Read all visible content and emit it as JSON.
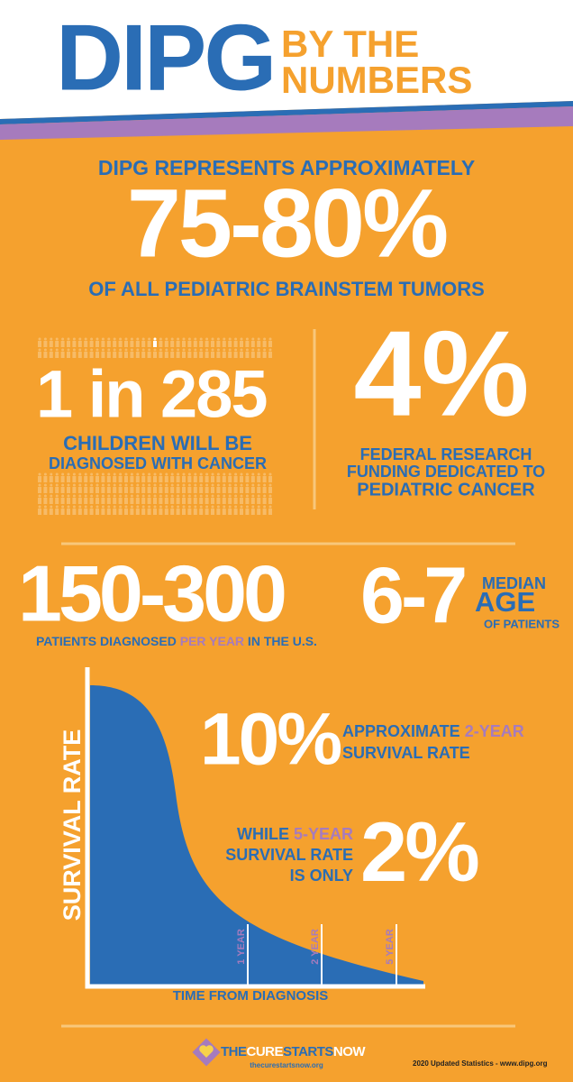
{
  "header": {
    "title": "DIPG",
    "subtitle_line1": "BY THE",
    "subtitle_line2": "NUMBERS"
  },
  "stat_brainstem": {
    "intro": "DIPG REPRESENTS APPROXIMATELY",
    "value": "75-80%",
    "caption": "OF ALL PEDIATRIC  BRAINSTEM TUMORS"
  },
  "stat_children": {
    "value": "1 in 285",
    "caption_line1": "CHILDREN WILL BE",
    "caption_line2": "DIAGNOSED WITH CANCER"
  },
  "stat_funding": {
    "value": "4%",
    "caption_line1": "FEDERAL RESEARCH",
    "caption_line2": "FUNDING DEDICATED TO",
    "caption_line3": "PEDIATRIC CANCER"
  },
  "stat_diagnosed": {
    "value": "150-300",
    "caption_part1": "PATIENTS DIAGNOSED ",
    "caption_highlight": "PER YEAR",
    "caption_part2": " IN THE U.S."
  },
  "stat_age": {
    "value": "6-7",
    "label_line1": "MEDIAN",
    "label_line2": "AGE",
    "label_line3": "OF PATIENTS"
  },
  "survival_chart": {
    "y_label": "SURVIVAL RATE",
    "x_label": "TIME FROM DIAGNOSIS",
    "markers": [
      "1 YEAR",
      "2 YEAR",
      "5 YEAR"
    ]
  },
  "stat_two_year": {
    "value": "10%",
    "caption_part1": "APPROXIMATE ",
    "caption_highlight": "2-YEAR",
    "caption_line2": "SURVIVAL RATE"
  },
  "stat_five_year": {
    "caption_part1": "WHILE ",
    "caption_highlight": "5-YEAR",
    "caption_line2": "SURVIVAL RATE",
    "caption_line3": "IS ONLY",
    "value": "2%"
  },
  "footer": {
    "brand_part1": "THE",
    "brand_part2": "CURE",
    "brand_part3": "STARTS",
    "brand_part4": "NOW",
    "website": "thecurestartsnow.org",
    "source": "2020 Updated Statistics - www.dipg.org"
  }
}
